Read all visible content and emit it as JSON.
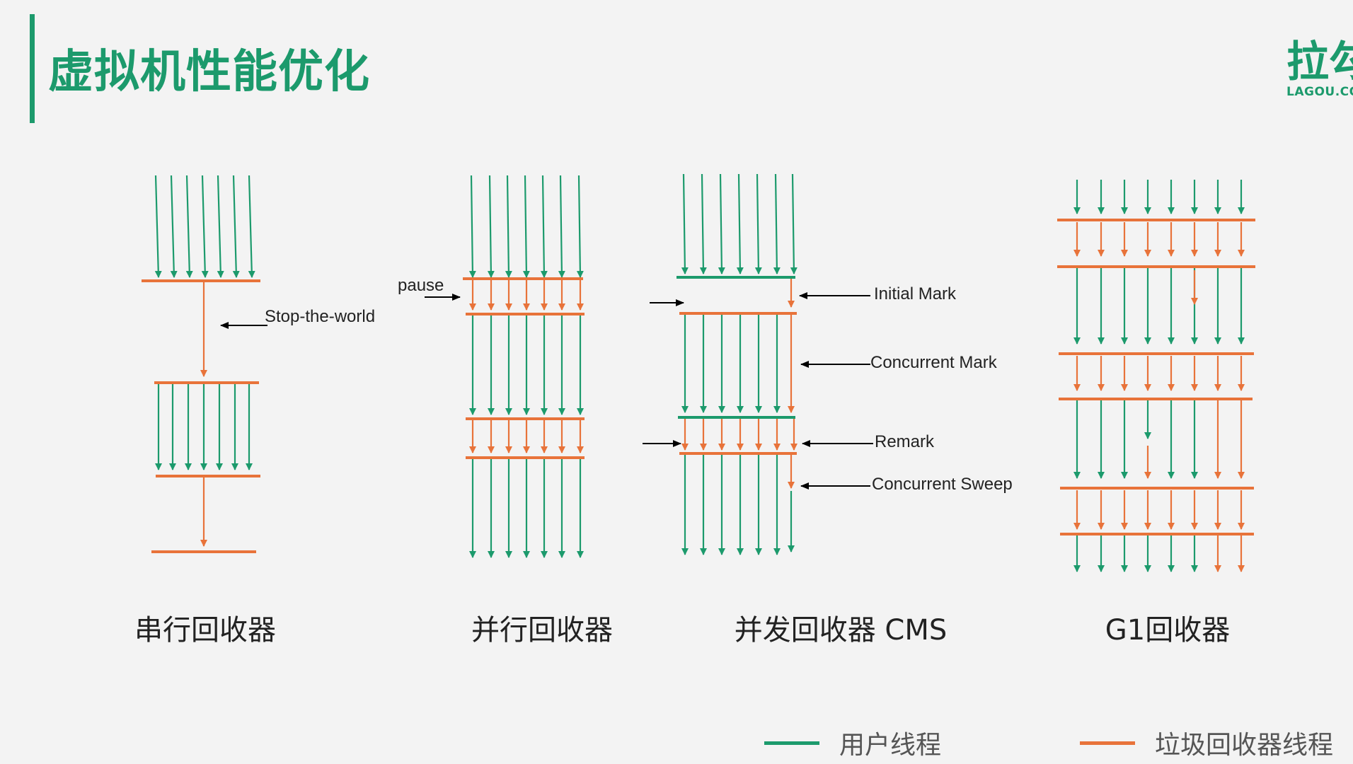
{
  "slide": {
    "title": "虚拟机性能优化"
  },
  "logo": {
    "mark": "拉勾",
    "text": "LAGOU.COM"
  },
  "colors": {
    "user_thread": "#1c9a6c",
    "gc_thread": "#e8733a",
    "annotation": "#000000"
  },
  "collectors": {
    "serial": {
      "name": "串行回收器"
    },
    "parallel": {
      "name": "并行回收器"
    },
    "cms": {
      "name": "并发回收器 CMS"
    },
    "g1": {
      "name": "G1回收器"
    }
  },
  "annotations": {
    "stop_the_world": "Stop-the-world",
    "pause": "pause",
    "initial_mark": "Initial Mark",
    "concurrent_mark": "Concurrent Mark",
    "remark": "Remark",
    "concurrent_sweep": "Concurrent Sweep"
  },
  "legend": {
    "user_thread": "用户线程",
    "gc_thread": "垃圾回收器线程"
  }
}
